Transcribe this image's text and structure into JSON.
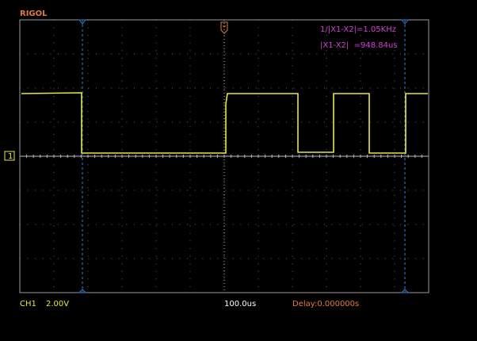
{
  "header": {
    "brand": "RIGOL"
  },
  "cursor_readout": {
    "frequency": "1/|X1-X2|=1.05KHz",
    "delta": "|X1-X2|  =948.84us"
  },
  "status": {
    "channel": "CH1",
    "volts": "2.00V",
    "timebase": "100.0us",
    "delay": "Delay:0.000000s"
  },
  "channel_marker": "1"
}
